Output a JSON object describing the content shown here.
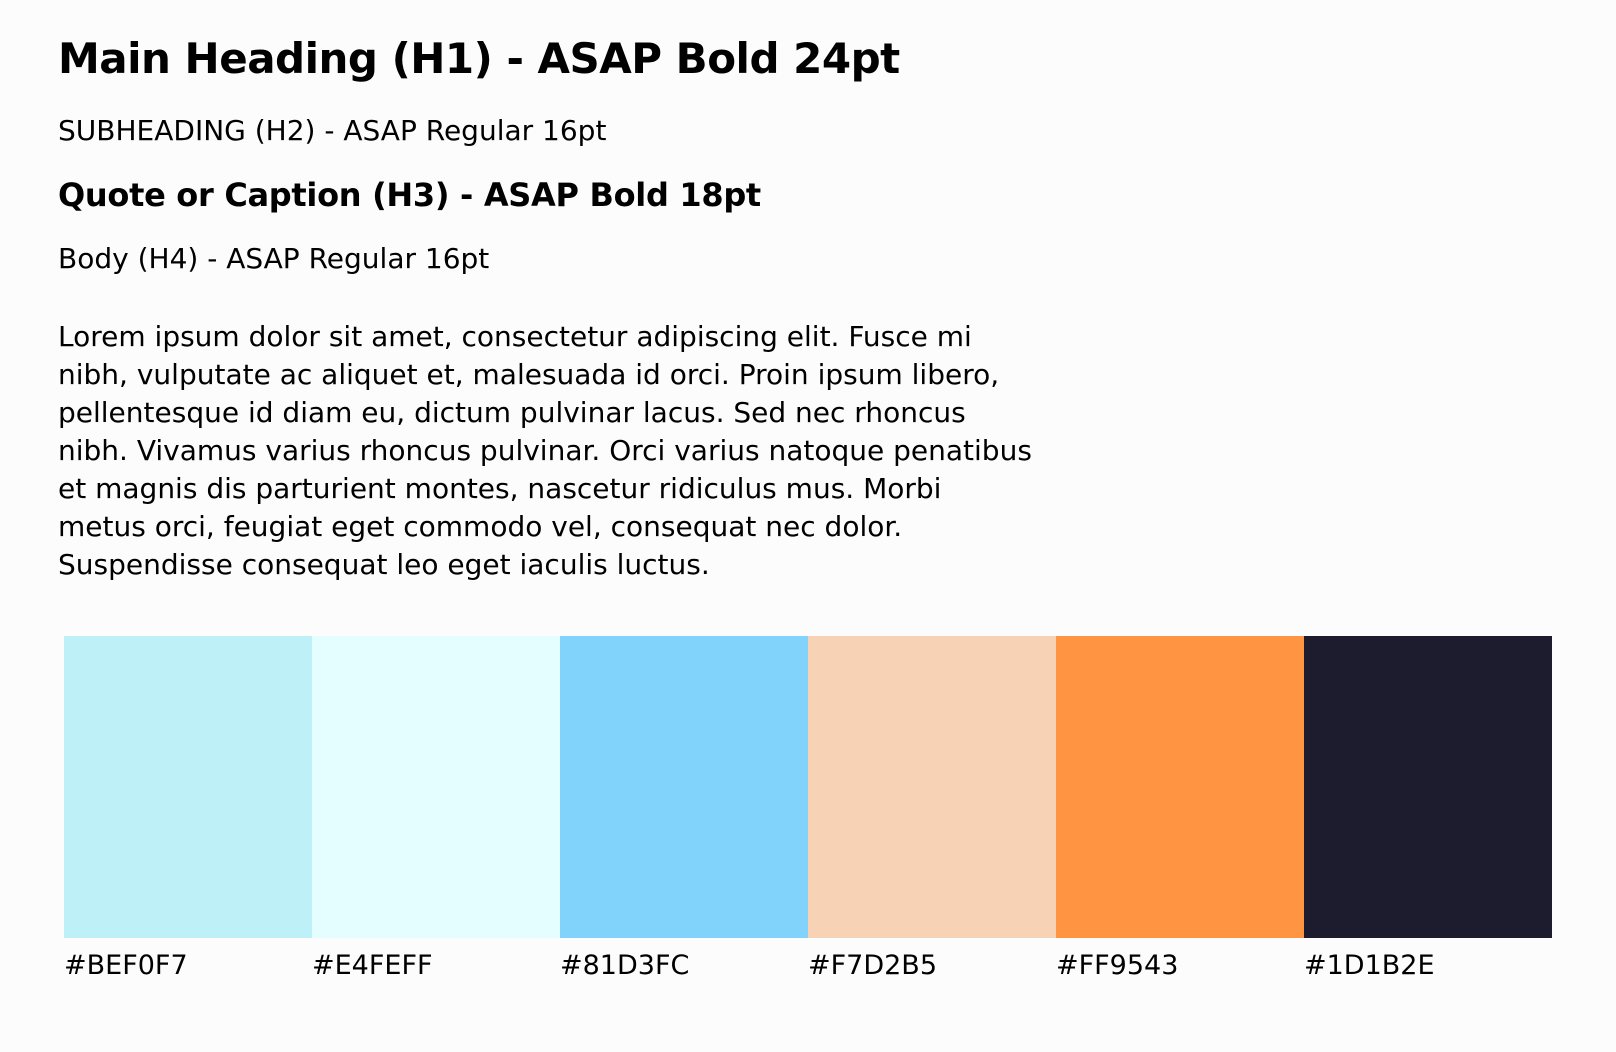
{
  "headings": {
    "h1": "Main Heading (H1) - ASAP Bold 24pt",
    "h2": "SUBHEADING (H2) - ASAP Regular 16pt",
    "h3": "Quote or Caption (H3) - ASAP Bold 18pt",
    "h4": "Body (H4) - ASAP Regular 16pt"
  },
  "body_text": "Lorem ipsum dolor sit amet, consectetur adipiscing elit. Fusce mi nibh, vulputate ac aliquet et, malesuada id orci. Proin ipsum libero, pellentesque id diam eu, dictum pulvinar lacus. Sed nec rhoncus nibh. Vivamus varius rhoncus pulvinar. Orci varius natoque penatibus et magnis dis parturient montes, nascetur ridiculus mus. Morbi metus orci, feugiat eget commodo vel, consequat nec dolor. Suspendisse consequat leo eget iaculis luctus.",
  "palette": [
    {
      "label": "#BEF0F7",
      "color": "#BEF0F7"
    },
    {
      "label": "#E4FEFF",
      "color": "#E4FEFF"
    },
    {
      "label": "#81D3FC",
      "color": "#81D3FC"
    },
    {
      "label": "#F7D2B5",
      "color": "#F7D2B5"
    },
    {
      "label": "#FF9543",
      "color": "#FF9543"
    },
    {
      "label": "#1D1B2E",
      "color": "#1D1B2E"
    }
  ]
}
